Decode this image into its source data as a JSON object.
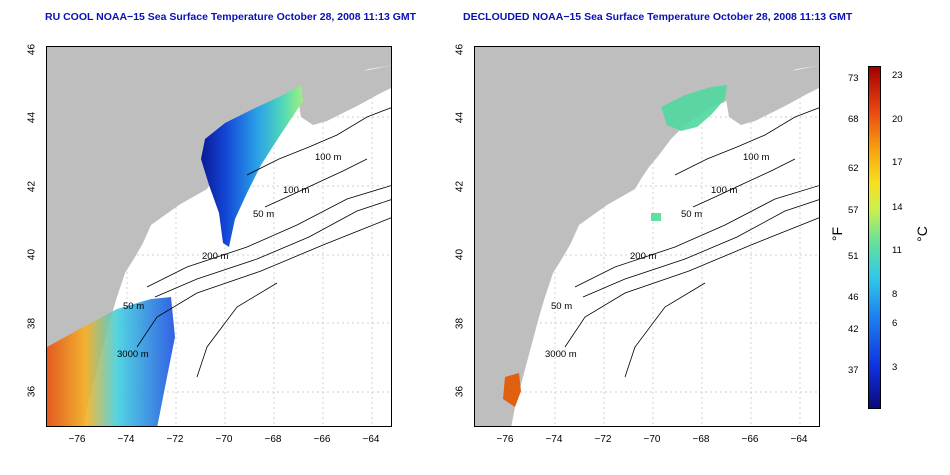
{
  "titles": {
    "left": "RU COOL NOAA−15 Sea Surface Temperature October 28, 2008 11:13 GMT",
    "right": "DECLOUDED NOAA−15 Sea Surface Temperature October 28, 2008 11:13 GMT"
  },
  "axes": {
    "lat_ticks": [
      "46",
      "44",
      "42",
      "40",
      "38",
      "36"
    ],
    "lon_ticks": [
      "−76",
      "−74",
      "−72",
      "−70",
      "−68",
      "−66",
      "−64"
    ],
    "lon_range": [
      -77.2,
      -63.2
    ],
    "lat_range": [
      35.0,
      46.0
    ]
  },
  "contour_labels": {
    "left": [
      "100 m",
      "100 m",
      "50 m",
      "200 m",
      "50 m",
      "3000 m"
    ],
    "right": [
      "100 m",
      "100 m",
      "50 m",
      "200 m",
      "50 m",
      "3000 m"
    ]
  },
  "colorbar": {
    "fahrenheit_label": "°F",
    "celsius_label": "°C",
    "fahrenheit_ticks": [
      "73",
      "68",
      "62",
      "57",
      "51",
      "46",
      "42",
      "37"
    ],
    "celsius_ticks": [
      "23",
      "20",
      "17",
      "14",
      "11",
      "8",
      "6",
      "3"
    ]
  },
  "colors": {
    "land": "#bebebe",
    "ocean": "#ffffff",
    "title": "#0a10b4",
    "contour": "#000000"
  }
}
